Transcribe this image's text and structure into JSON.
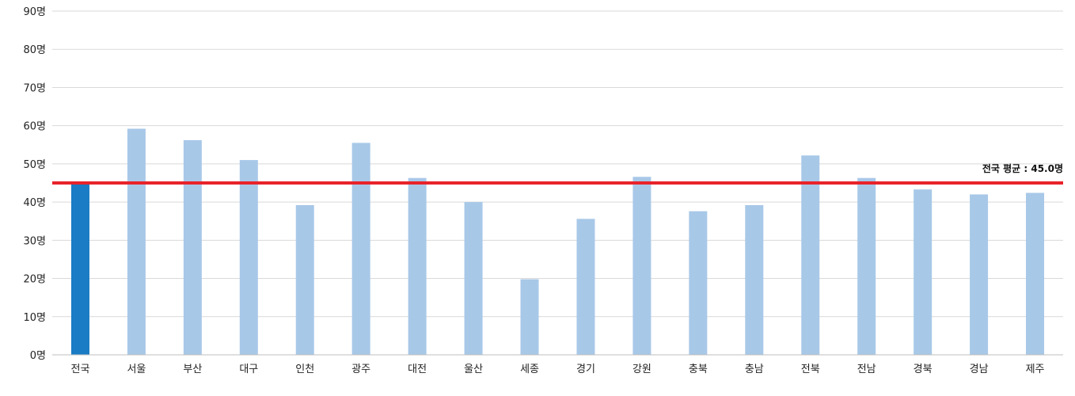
{
  "chart_data": {
    "type": "bar",
    "categories": [
      "전국",
      "서울",
      "부산",
      "대구",
      "인천",
      "광주",
      "대전",
      "울산",
      "세종",
      "경기",
      "강원",
      "충북",
      "충남",
      "전북",
      "전남",
      "경북",
      "경남",
      "제주"
    ],
    "values": [
      45.0,
      59.2,
      56.2,
      51.0,
      39.2,
      55.5,
      46.3,
      40.0,
      19.8,
      35.6,
      46.6,
      37.6,
      39.2,
      52.2,
      46.3,
      43.3,
      42.0,
      42.4
    ],
    "y_ticks": [
      "0명",
      "10명",
      "20명",
      "30명",
      "40명",
      "50명",
      "60명",
      "70명",
      "80명",
      "90명"
    ],
    "ylim": [
      0,
      90
    ],
    "grid": true,
    "highlight_category": "전국",
    "average": {
      "value": 45.0,
      "label": "전국 평균 : 45.0명"
    },
    "colors": {
      "highlight_bar": "#1a7cc4",
      "bar": "#a8c8e8",
      "average_line": "#e8232a",
      "grid": "#d9d9d9",
      "axis": "#bfbfbf"
    }
  }
}
